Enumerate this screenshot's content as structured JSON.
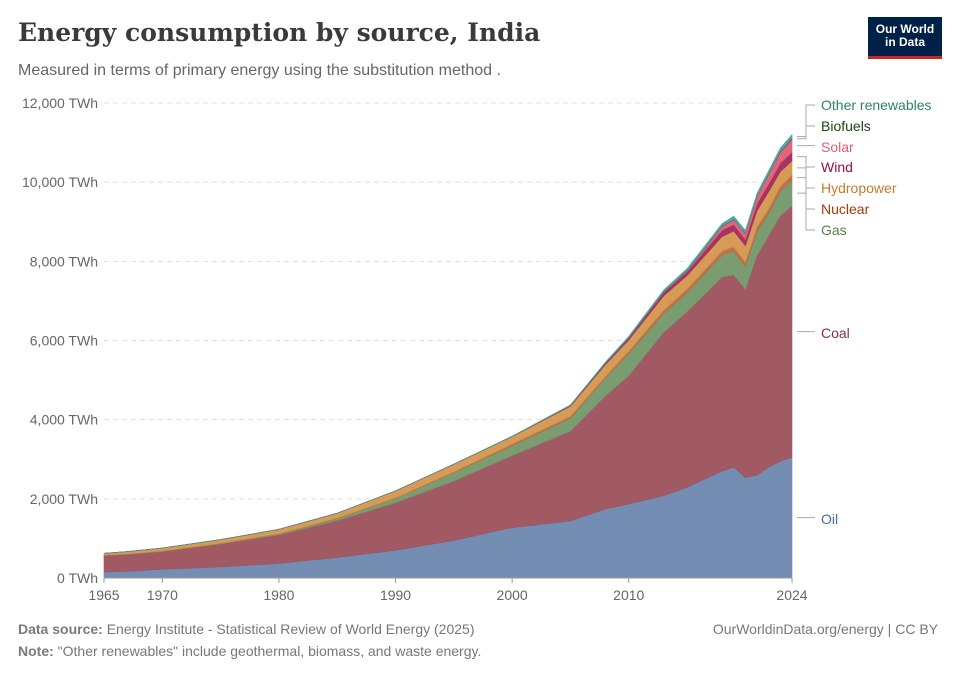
{
  "header": {
    "title": "Energy consumption by source, India",
    "subtitle": "Measured in terms of primary energy using the substitution method .",
    "logo_text": "Our World\nin Data"
  },
  "footer": {
    "source_label": "Data source:",
    "source_text": "Energy Institute - Statistical Review of World Energy (2025)",
    "note_label": "Note:",
    "note_text": "\"Other renewables\" include geothermal, biomass, and waste energy.",
    "credit": "OurWorldinData.org/energy | CC BY"
  },
  "chart_data": {
    "type": "area",
    "stacked": true,
    "title": "Energy consumption by source, India",
    "ylabel": "TWh",
    "ylim": [
      0,
      12000
    ],
    "xlim": [
      1965,
      2024
    ],
    "y_ticks": [
      {
        "value": 0,
        "label": "0 TWh"
      },
      {
        "value": 2000,
        "label": "2,000 TWh"
      },
      {
        "value": 4000,
        "label": "4,000 TWh"
      },
      {
        "value": 6000,
        "label": "6,000 TWh"
      },
      {
        "value": 8000,
        "label": "8,000 TWh"
      },
      {
        "value": 10000,
        "label": "10,000 TWh"
      },
      {
        "value": 12000,
        "label": "12,000 TWh"
      }
    ],
    "x_ticks": [
      {
        "value": 1965,
        "label": "1965"
      },
      {
        "value": 1970,
        "label": "1970"
      },
      {
        "value": 1980,
        "label": "1980"
      },
      {
        "value": 1990,
        "label": "1990"
      },
      {
        "value": 2000,
        "label": "2000"
      },
      {
        "value": 2010,
        "label": "2010"
      },
      {
        "value": 2024,
        "label": "2024"
      }
    ],
    "x": [
      1965,
      1967,
      1970,
      1975,
      1980,
      1985,
      1990,
      1995,
      2000,
      2005,
      2008,
      2010,
      2013,
      2015,
      2018,
      2019,
      2020,
      2021,
      2022,
      2023,
      2024
    ],
    "series": [
      {
        "name": "Oil",
        "color": "#6d87ae",
        "label_color": "#4c6a9c",
        "values": [
          150,
          170,
          220,
          280,
          370,
          520,
          700,
          950,
          1270,
          1440,
          1740,
          1870,
          2080,
          2290,
          2700,
          2800,
          2540,
          2600,
          2800,
          2950,
          3050
        ]
      },
      {
        "name": "Coal",
        "color": "#9c515b",
        "label_color": "#883039",
        "values": [
          420,
          430,
          450,
          580,
          720,
          930,
          1200,
          1500,
          1820,
          2270,
          2860,
          3240,
          4130,
          4440,
          4900,
          4860,
          4750,
          5550,
          5850,
          6200,
          6350
        ]
      },
      {
        "name": "Gas",
        "color": "#73976a",
        "label_color": "#578145",
        "values": [
          5,
          5,
          7,
          12,
          20,
          50,
          110,
          210,
          250,
          330,
          450,
          560,
          470,
          480,
          560,
          590,
          580,
          600,
          560,
          620,
          650
        ]
      },
      {
        "name": "Nuclear",
        "color": "#bd6a3d",
        "label_color": "#b13507",
        "values": [
          0,
          2,
          7,
          8,
          8,
          13,
          16,
          21,
          42,
          48,
          43,
          62,
          88,
          92,
          100,
          115,
          112,
          118,
          122,
          128,
          132
        ]
      },
      {
        "name": "Hydropower",
        "color": "#d3964f",
        "label_color": "#c47a2c",
        "values": [
          50,
          60,
          72,
          90,
          112,
          125,
          175,
          190,
          190,
          250,
          300,
          280,
          360,
          340,
          365,
          400,
          410,
          405,
          430,
          370,
          355
        ]
      },
      {
        "name": "Wind",
        "color": "#a1295c",
        "label_color": "#9a0d49",
        "values": [
          0,
          0,
          0,
          0,
          0,
          0,
          0,
          3,
          4,
          17,
          33,
          52,
          88,
          95,
          160,
          165,
          158,
          180,
          195,
          210,
          220
        ]
      },
      {
        "name": "Solar",
        "color": "#df5f72",
        "label_color": "#e05d74",
        "values": [
          0,
          0,
          0,
          0,
          0,
          0,
          0,
          0,
          0,
          0,
          1,
          2,
          9,
          19,
          90,
          125,
          150,
          175,
          240,
          280,
          330
        ]
      },
      {
        "name": "Biofuels",
        "color": "#3a3f84",
        "label_color": "#18470f",
        "values": [
          0,
          0,
          0,
          0,
          0,
          0,
          0,
          0,
          1,
          2,
          3,
          4,
          5,
          7,
          9,
          10,
          10,
          12,
          15,
          18,
          20
        ]
      },
      {
        "name": "Other renewables",
        "color": "#4aa396",
        "label_color": "#2c8465",
        "values": [
          0,
          0,
          0,
          0,
          0,
          0,
          1,
          4,
          8,
          15,
          25,
          35,
          48,
          55,
          70,
          75,
          72,
          78,
          82,
          88,
          92
        ]
      }
    ],
    "legend_placement": "right"
  }
}
